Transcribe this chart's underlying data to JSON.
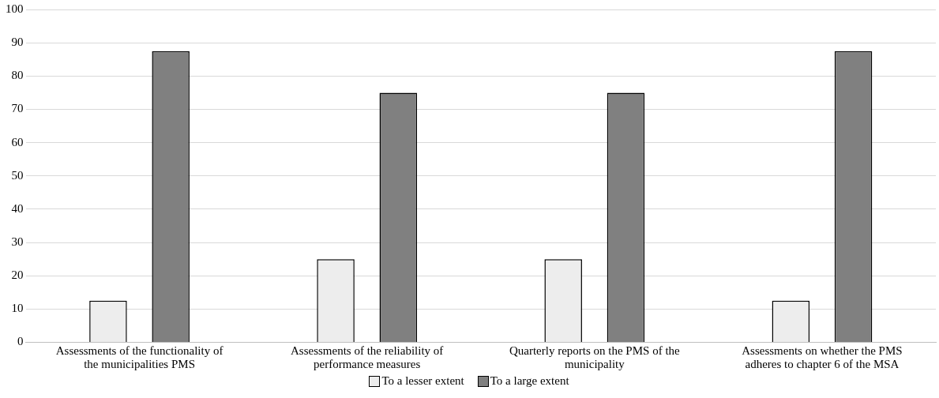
{
  "chart_data": {
    "type": "bar",
    "categories": [
      "Assessments of the functionality of the municipalities PMS",
      "Assessments of the reliability of performance measures",
      "Quarterly reports on the PMS of the municipality",
      "Assessments on whether the PMS adheres to chapter 6 of the MSA"
    ],
    "series": [
      {
        "name": "To a lesser extent",
        "color": "#ededed",
        "values": [
          12.5,
          25,
          25,
          12.5
        ]
      },
      {
        "name": "To a large extent",
        "color": "#808080",
        "values": [
          87.5,
          75,
          75,
          87.5
        ]
      }
    ],
    "ylim": [
      0,
      100
    ],
    "yticks": [
      0,
      10,
      20,
      30,
      40,
      50,
      60,
      70,
      80,
      90,
      100
    ],
    "grid": "y",
    "legend": "bottom"
  }
}
